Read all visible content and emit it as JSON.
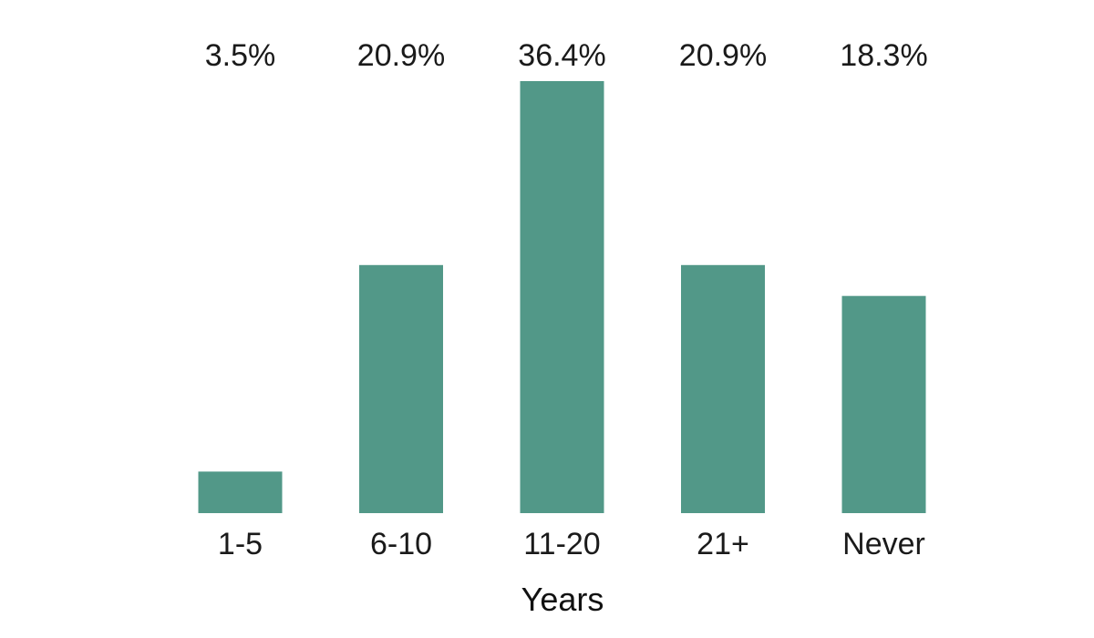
{
  "chart_data": {
    "type": "bar",
    "categories": [
      "1-5",
      "6-10",
      "11-20",
      "21+",
      "Never"
    ],
    "values": [
      3.5,
      20.9,
      36.4,
      20.9,
      18.3
    ],
    "value_labels": [
      "3.5%",
      "20.9%",
      "36.4%",
      "20.9%",
      "18.3%"
    ],
    "xlabel": "Years",
    "ylabel": "",
    "ylim": [
      0,
      36.4
    ],
    "grid": false,
    "legend": "none",
    "bar_color": "#529888"
  }
}
